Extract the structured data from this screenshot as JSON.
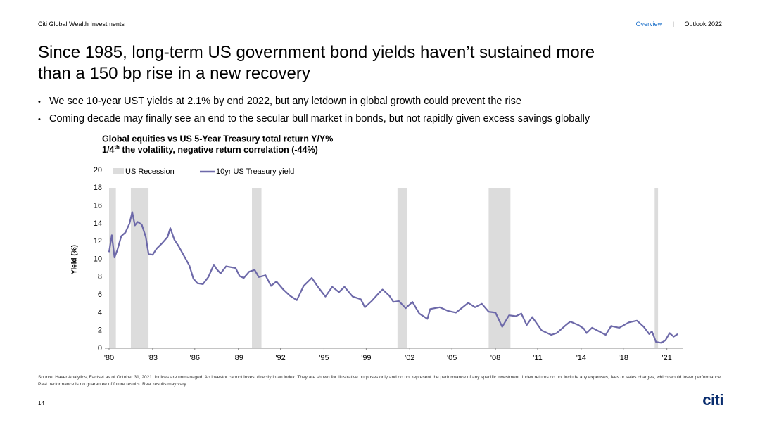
{
  "header": {
    "brand": "Citi Global Wealth Investments",
    "nav": [
      "Overview",
      "|",
      "Outlook 2022"
    ]
  },
  "title": [
    "Since 1985, long-term US government bond yields haven’t sustained more",
    "than a 150 bp rise in a new recovery"
  ],
  "bullets": [
    "We see 10-year UST yields at 2.1% by end 2022, but any letdown in global growth could prevent the rise",
    "Coming decade may finally see an end to the secular bull market in bonds, but not rapidly given excess savings globally"
  ],
  "chart_data": {
    "type": "line",
    "title": "Global equities vs US 5-Year Treasury total return Y/Y%",
    "subtitle": {
      "prefix": "1/4",
      "sup": "th",
      "rest": " the volatility, negative return correlation (-44%)"
    },
    "ylabel": "Yield (%)",
    "xlim": [
      1980,
      2022
    ],
    "xticks": [
      {
        "value": 1980,
        "label": "'80"
      },
      {
        "value": 1983.2,
        "label": "'83"
      },
      {
        "value": 1986.3,
        "label": "'86"
      },
      {
        "value": 1989.5,
        "label": "'89"
      },
      {
        "value": 1992.6,
        "label": "'92"
      },
      {
        "value": 1995.8,
        "label": "'95"
      },
      {
        "value": 1998.9,
        "label": "'99"
      },
      {
        "value": 2002.1,
        "label": "'02"
      },
      {
        "value": 2005.2,
        "label": "'05"
      },
      {
        "value": 2008.4,
        "label": "'08"
      },
      {
        "value": 2011.5,
        "label": "'11"
      },
      {
        "value": 2014.7,
        "label": "'14"
      },
      {
        "value": 2017.8,
        "label": "'18"
      },
      {
        "value": 2021,
        "label": "'21"
      }
    ],
    "ylim": [
      0,
      20
    ],
    "yticks": [
      0,
      2,
      4,
      6,
      8,
      10,
      12,
      14,
      16,
      18,
      20
    ],
    "recession": {
      "name": "US Recession",
      "color": "#dcdcdc",
      "periods": [
        [
          1980.0,
          1980.5
        ],
        [
          1981.6,
          1982.9
        ],
        [
          1990.5,
          1991.2
        ],
        [
          2001.2,
          2001.9
        ],
        [
          2007.9,
          2009.5
        ],
        [
          2020.1,
          2020.35
        ]
      ]
    },
    "series": [
      {
        "name": "10yr US Treasury yield",
        "color": "#6d69a9",
        "x": [
          1980.0,
          1980.2,
          1980.4,
          1980.6,
          1980.9,
          1981.2,
          1981.5,
          1981.7,
          1981.9,
          1982.1,
          1982.4,
          1982.7,
          1982.9,
          1983.2,
          1983.5,
          1983.9,
          1984.3,
          1984.5,
          1984.8,
          1985.1,
          1985.5,
          1985.9,
          1986.2,
          1986.5,
          1986.9,
          1987.3,
          1987.7,
          1987.9,
          1988.2,
          1988.6,
          1989.0,
          1989.3,
          1989.6,
          1989.9,
          1990.3,
          1990.7,
          1991.0,
          1991.5,
          1991.9,
          1992.3,
          1992.8,
          1993.3,
          1993.8,
          1994.3,
          1994.9,
          1995.3,
          1995.9,
          1996.4,
          1996.9,
          1997.3,
          1997.9,
          1998.5,
          1998.8,
          1999.3,
          1999.9,
          2000.1,
          2000.6,
          2000.9,
          2001.3,
          2001.8,
          2002.3,
          2002.8,
          2003.4,
          2003.6,
          2004.3,
          2004.9,
          2005.5,
          2006.4,
          2006.9,
          2007.4,
          2007.9,
          2008.4,
          2008.9,
          2009.4,
          2009.9,
          2010.3,
          2010.7,
          2011.1,
          2011.8,
          2012.5,
          2012.9,
          2013.5,
          2013.9,
          2014.5,
          2014.9,
          2015.1,
          2015.5,
          2016.5,
          2016.9,
          2017.5,
          2018.2,
          2018.8,
          2019.3,
          2019.7,
          2019.9,
          2020.2,
          2020.6,
          2020.9,
          2021.2,
          2021.5,
          2021.8
        ],
        "values": [
          10.8,
          12.7,
          10.2,
          11.0,
          12.6,
          13.0,
          14.0,
          15.3,
          13.8,
          14.2,
          13.9,
          12.5,
          10.6,
          10.5,
          11.2,
          11.8,
          12.5,
          13.5,
          12.2,
          11.5,
          10.4,
          9.3,
          7.8,
          7.3,
          7.2,
          8.0,
          9.4,
          8.9,
          8.4,
          9.2,
          9.1,
          9.0,
          8.1,
          7.9,
          8.6,
          8.8,
          8.0,
          8.2,
          7.0,
          7.5,
          6.6,
          5.9,
          5.4,
          7.0,
          7.9,
          7.0,
          5.8,
          6.9,
          6.3,
          6.9,
          5.8,
          5.5,
          4.6,
          5.3,
          6.3,
          6.6,
          5.9,
          5.2,
          5.3,
          4.5,
          5.2,
          3.9,
          3.3,
          4.4,
          4.6,
          4.2,
          4.0,
          5.1,
          4.6,
          5.0,
          4.1,
          4.0,
          2.4,
          3.7,
          3.6,
          3.9,
          2.6,
          3.5,
          2.0,
          1.5,
          1.7,
          2.5,
          3.0,
          2.6,
          2.2,
          1.7,
          2.3,
          1.5,
          2.5,
          2.3,
          2.9,
          3.1,
          2.4,
          1.6,
          1.9,
          0.7,
          0.6,
          0.9,
          1.7,
          1.3,
          1.6
        ]
      }
    ]
  },
  "footnote": "Source: Haver Analytics, Factset as of October 31, 2021. Indices are unmanaged. An investor cannot invest directly in an index. They are shown for illustrative purposes only and do not represent the performance of any specific investment. Index returns do not include any expenses, fees or sales charges, which would lower performance. Past performance is no guarantee of future results. Real results may vary.",
  "page_number": "14",
  "logo": "citi"
}
